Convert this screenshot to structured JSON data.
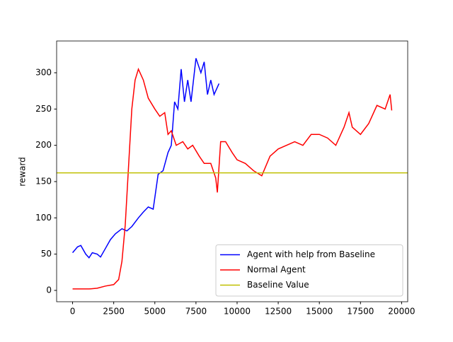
{
  "chart_data": {
    "type": "line",
    "ylabel": "reward",
    "xlim": [
      -970,
      20370
    ],
    "ylim": [
      -15.6,
      343.8
    ],
    "xticks": [
      0,
      2500,
      5000,
      7500,
      10000,
      12500,
      15000,
      17500,
      20000
    ],
    "yticks": [
      0,
      50,
      100,
      150,
      200,
      250,
      300
    ],
    "grid": false,
    "legend": "lower right",
    "series": [
      {
        "name": "Agent with help from Baseline",
        "color": "#0000ff",
        "x": [
          0,
          300,
          500,
          800,
          1000,
          1200,
          1500,
          1700,
          2000,
          2300,
          2600,
          3000,
          3300,
          3600,
          4000,
          4300,
          4600,
          4900,
          5200,
          5500,
          5800,
          6000,
          6200,
          6400,
          6600,
          6800,
          7000,
          7200,
          7500,
          7800,
          8000,
          8200,
          8400,
          8600,
          8900
        ],
        "values": [
          52,
          60,
          62,
          50,
          45,
          52,
          50,
          46,
          58,
          70,
          78,
          85,
          82,
          88,
          100,
          108,
          115,
          112,
          160,
          165,
          190,
          200,
          260,
          250,
          305,
          260,
          290,
          260,
          320,
          300,
          315,
          270,
          290,
          270,
          285
        ]
      },
      {
        "name": "Normal Agent",
        "color": "#ff0000",
        "x": [
          0,
          1000,
          1500,
          2000,
          2500,
          2800,
          3000,
          3200,
          3400,
          3600,
          3800,
          4000,
          4300,
          4600,
          5000,
          5300,
          5600,
          5800,
          6000,
          6300,
          6700,
          7000,
          7300,
          7700,
          8000,
          8400,
          8700,
          8800,
          9000,
          9300,
          9700,
          10000,
          10500,
          11000,
          11500,
          12000,
          12500,
          13000,
          13500,
          14000,
          14500,
          15000,
          15500,
          16000,
          16500,
          16800,
          17000,
          17500,
          18000,
          18500,
          19000,
          19300,
          19400
        ],
        "values": [
          2,
          2,
          3,
          6,
          8,
          15,
          40,
          90,
          170,
          250,
          290,
          305,
          290,
          265,
          250,
          240,
          245,
          215,
          220,
          200,
          205,
          195,
          200,
          185,
          175,
          175,
          155,
          135,
          205,
          205,
          190,
          180,
          175,
          165,
          158,
          185,
          195,
          200,
          205,
          200,
          215,
          215,
          210,
          200,
          225,
          245,
          225,
          215,
          230,
          255,
          250,
          270,
          248
        ]
      },
      {
        "name": "Baseline Value",
        "color": "#bfbf00",
        "y": 162
      }
    ]
  }
}
